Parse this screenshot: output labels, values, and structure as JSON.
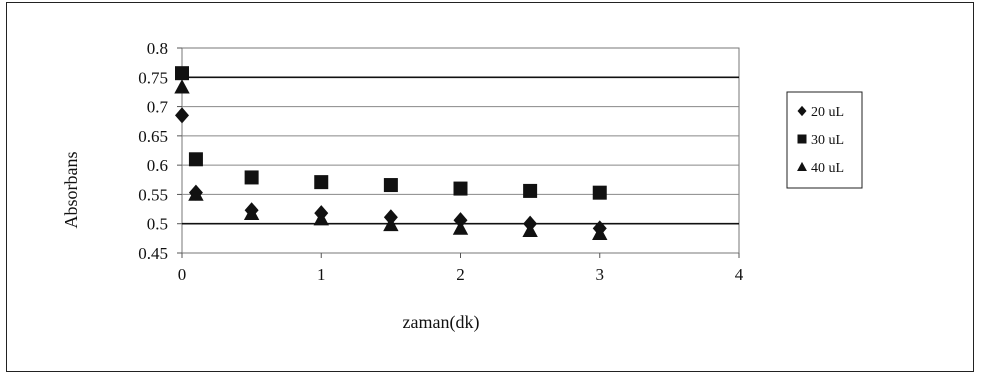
{
  "chart_data": {
    "type": "scatter",
    "xlabel": "zaman(dk)",
    "ylabel": "Absorbans",
    "xlim": [
      0,
      4
    ],
    "ylim": [
      0.45,
      0.8
    ],
    "x_ticks": [
      "0",
      "1",
      "2",
      "3",
      "4"
    ],
    "y_ticks": [
      "0.45",
      "0.5",
      "0.55",
      "0.6",
      "0.65",
      "0.7",
      "0.75",
      "0.8"
    ],
    "grid": "horizontal",
    "legend_position": "right",
    "series": [
      {
        "name": "20 uL",
        "marker": "diamond",
        "color": "#111111",
        "points": [
          [
            0,
            0.685
          ],
          [
            0.1,
            0.553
          ],
          [
            0.5,
            0.523
          ],
          [
            1,
            0.518
          ],
          [
            1.5,
            0.511
          ],
          [
            2,
            0.506
          ],
          [
            2.5,
            0.5
          ],
          [
            3,
            0.492
          ]
        ]
      },
      {
        "name": "30 uL",
        "marker": "square",
        "color": "#111111",
        "points": [
          [
            0,
            0.757
          ],
          [
            0.1,
            0.61
          ],
          [
            0.5,
            0.579
          ],
          [
            1,
            0.571
          ],
          [
            1.5,
            0.566
          ],
          [
            2,
            0.56
          ],
          [
            2.5,
            0.556
          ],
          [
            3,
            0.553
          ]
        ]
      },
      {
        "name": "40 uL",
        "marker": "triangle",
        "color": "#111111",
        "points": [
          [
            0,
            0.733
          ],
          [
            0.1,
            0.55
          ],
          [
            0.5,
            0.517
          ],
          [
            1,
            0.508
          ],
          [
            1.5,
            0.498
          ],
          [
            2,
            0.492
          ],
          [
            2.5,
            0.488
          ],
          [
            3,
            0.483
          ]
        ]
      }
    ]
  }
}
